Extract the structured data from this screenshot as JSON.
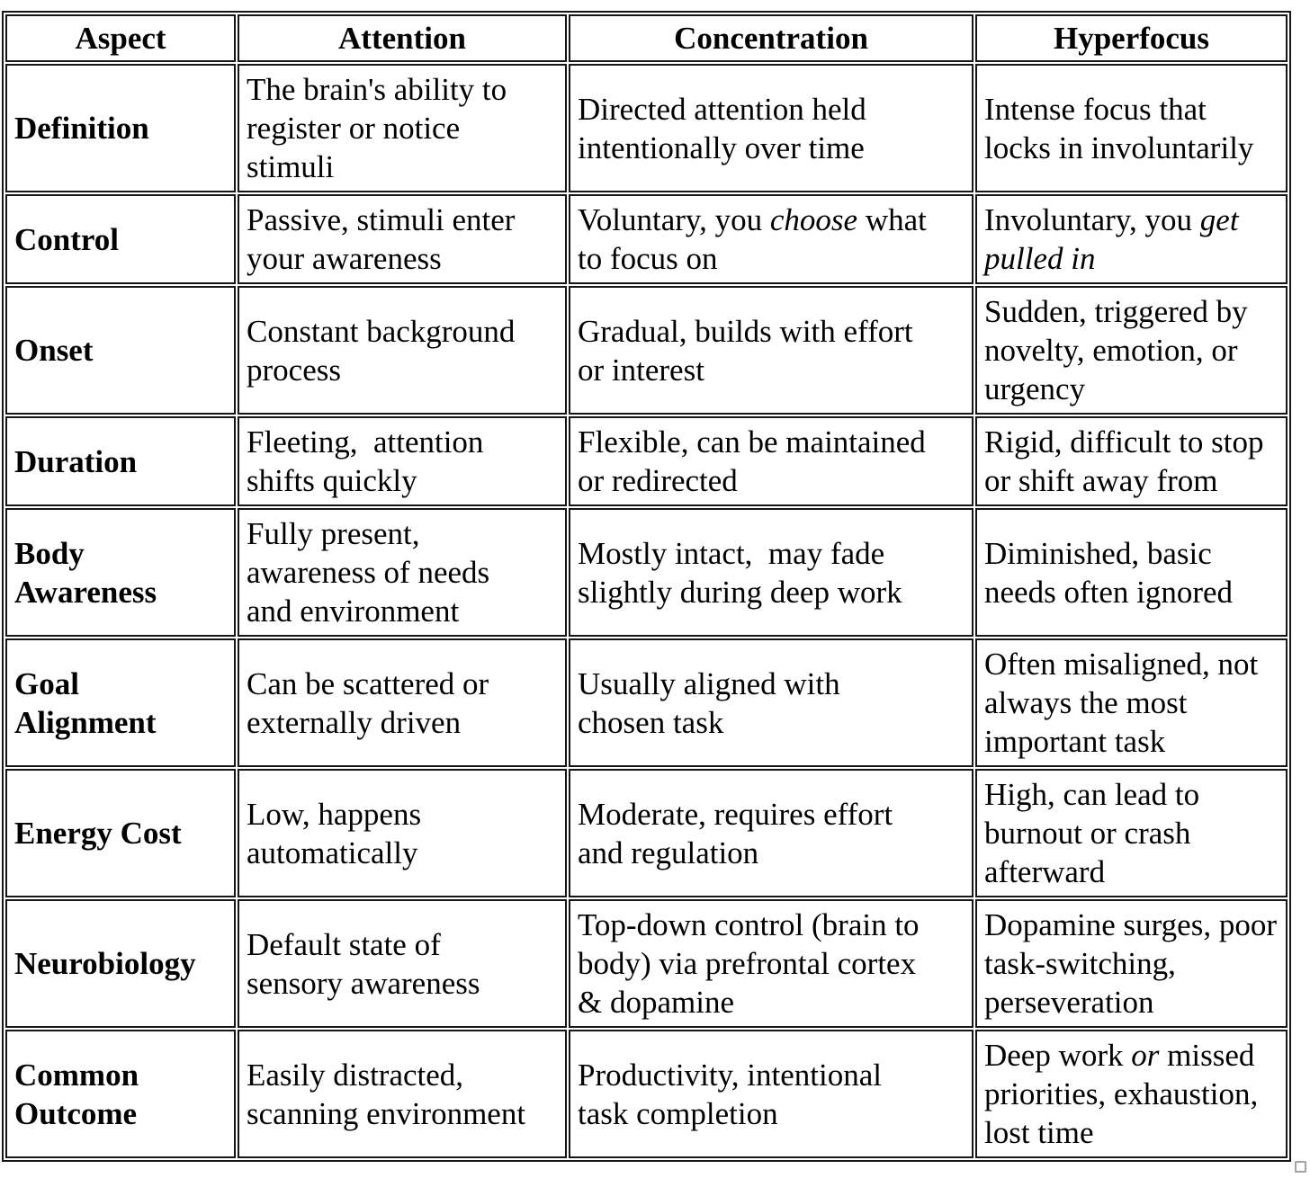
{
  "page": {
    "background": "#ffffff",
    "table_border_color": "#161616"
  },
  "table": {
    "header": [
      "Aspect",
      "Attention",
      "Concentration",
      "Hyperfocus"
    ],
    "rows": [
      {
        "aspect": "Definition",
        "cells": [
          [
            {
              "text": "The brain's ability to\nregister or notice\nstimuli"
            }
          ],
          [
            {
              "text": "Directed attention held\nintentionally over time"
            }
          ],
          [
            {
              "text": "Intense focus that\nlocks in involuntarily"
            }
          ]
        ]
      },
      {
        "aspect": "Control",
        "cells": [
          [
            {
              "text": "Passive, stimuli enter\nyour awareness"
            }
          ],
          [
            {
              "text": "Voluntary, you "
            },
            {
              "text": "choose",
              "italic": true
            },
            {
              "text": " what\nto focus on"
            }
          ],
          [
            {
              "text": "Involuntary, you "
            },
            {
              "text": "get\npulled in",
              "italic": true
            }
          ]
        ]
      },
      {
        "aspect": "Onset",
        "cells": [
          [
            {
              "text": "Constant background\nprocess"
            }
          ],
          [
            {
              "text": "Gradual, builds with effort\nor interest"
            }
          ],
          [
            {
              "text": "Sudden, triggered by\nnovelty, emotion, or\nurgency"
            }
          ]
        ]
      },
      {
        "aspect": "Duration",
        "cells": [
          [
            {
              "text": "Fleeting,  attention\nshifts quickly"
            }
          ],
          [
            {
              "text": "Flexible, can be maintained\nor redirected"
            }
          ],
          [
            {
              "text": "Rigid, difficult to stop\nor shift away from"
            }
          ]
        ]
      },
      {
        "aspect": "Body\nAwareness",
        "cells": [
          [
            {
              "text": "Fully present,\nawareness of needs\nand environment"
            }
          ],
          [
            {
              "text": "Mostly intact,  may fade\nslightly during deep work"
            }
          ],
          [
            {
              "text": "Diminished, basic\nneeds often ignored"
            }
          ]
        ]
      },
      {
        "aspect": "Goal\nAlignment",
        "cells": [
          [
            {
              "text": "Can be scattered or\nexternally driven"
            }
          ],
          [
            {
              "text": "Usually aligned with\nchosen task"
            }
          ],
          [
            {
              "text": "Often misaligned, not\nalways the most\nimportant task"
            }
          ]
        ]
      },
      {
        "aspect": "Energy Cost",
        "cells": [
          [
            {
              "text": "Low, happens\nautomatically"
            }
          ],
          [
            {
              "text": "Moderate, requires effort\nand regulation"
            }
          ],
          [
            {
              "text": "High, can lead to\nburnout or crash\nafterward"
            }
          ]
        ]
      },
      {
        "aspect": "Neurobiology",
        "cells": [
          [
            {
              "text": "Default state of\nsensory awareness"
            }
          ],
          [
            {
              "text": "Top-down control (brain to\nbody) via prefrontal cortex\n& dopamine"
            }
          ],
          [
            {
              "text": "Dopamine surges, poor\ntask-switching,\nperseveration"
            }
          ]
        ]
      },
      {
        "aspect": "Common\nOutcome",
        "cells": [
          [
            {
              "text": "Easily distracted,\nscanning environment"
            }
          ],
          [
            {
              "text": "Productivity, intentional\ntask completion"
            }
          ],
          [
            {
              "text": "Deep work "
            },
            {
              "text": "or",
              "italic": true
            },
            {
              "text": " missed\npriorities, exhaustion,\nlost time"
            }
          ]
        ]
      }
    ]
  }
}
